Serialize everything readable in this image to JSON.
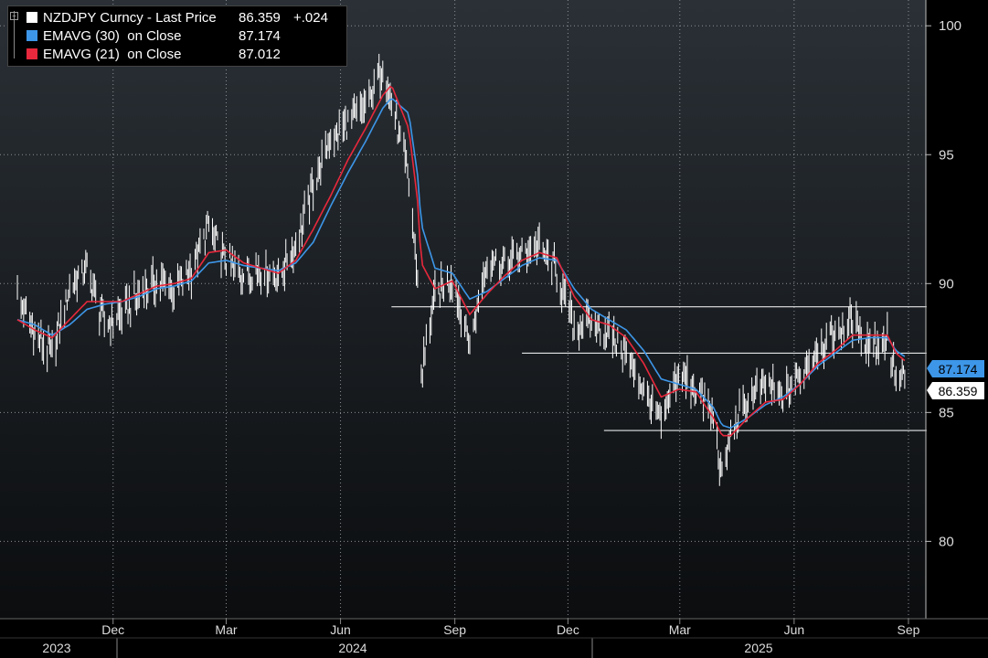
{
  "legend": {
    "items": [
      {
        "name": "NZDJPY Curncy - Last Price",
        "value": "86.359",
        "change": "+.024",
        "color": "#ffffff"
      },
      {
        "name": "EMAVG (30)  on Close",
        "value": "87.174",
        "change": "",
        "color": "#3d96e8"
      },
      {
        "name": "EMAVG (21)  on Close",
        "value": "87.012",
        "change": "",
        "color": "#e8283c"
      }
    ]
  },
  "price_tags": {
    "ema30": "87.174",
    "last": "86.359"
  },
  "chart_data": {
    "type": "line",
    "title": "",
    "xlabel": "",
    "ylabel": "",
    "ylim": [
      77,
      101
    ],
    "yticks": [
      "80",
      "85",
      "90",
      "95",
      "100"
    ],
    "month_labels": [
      "Dec",
      "Mar",
      "Jun",
      "Sep",
      "Dec",
      "Mar",
      "Jun",
      "Sep"
    ],
    "year_labels": [
      "2023",
      "2024",
      "2025"
    ],
    "grid": true,
    "legend_position": "top-left",
    "x": [
      "2023-09-15",
      "2023-09-29",
      "2023-10-13",
      "2023-10-27",
      "2023-11-10",
      "2023-11-24",
      "2023-12-08",
      "2023-12-22",
      "2024-01-05",
      "2024-01-19",
      "2024-02-02",
      "2024-02-16",
      "2024-03-01",
      "2024-03-15",
      "2024-03-29",
      "2024-04-12",
      "2024-04-26",
      "2024-05-10",
      "2024-05-24",
      "2024-06-07",
      "2024-06-21",
      "2024-07-05",
      "2024-07-12",
      "2024-07-26",
      "2024-08-02",
      "2024-08-05",
      "2024-08-16",
      "2024-08-30",
      "2024-09-13",
      "2024-09-27",
      "2024-10-11",
      "2024-10-25",
      "2024-11-08",
      "2024-11-22",
      "2024-12-06",
      "2024-12-20",
      "2025-01-03",
      "2025-01-17",
      "2025-01-31",
      "2025-02-14",
      "2025-02-28",
      "2025-03-14",
      "2025-03-28",
      "2025-04-04",
      "2025-04-11",
      "2025-04-25",
      "2025-05-09",
      "2025-05-23",
      "2025-06-06",
      "2025-06-20",
      "2025-07-04",
      "2025-07-18",
      "2025-08-01",
      "2025-08-15",
      "2025-08-22",
      "2025-08-29"
    ],
    "series": [
      {
        "name": "NZDJPY Curncy - Last Price",
        "color": "#ffffff",
        "style": "bars",
        "values": [
          89.5,
          88.0,
          87.2,
          89.8,
          90.6,
          88.4,
          88.8,
          89.6,
          90.1,
          89.8,
          90.5,
          92.2,
          90.8,
          90.3,
          90.6,
          90.2,
          91.5,
          93.8,
          95.6,
          96.2,
          96.8,
          98.4,
          97.0,
          94.0,
          90.2,
          86.5,
          89.5,
          90.3,
          87.5,
          91.0,
          90.8,
          91.2,
          91.5,
          90.4,
          88.3,
          88.5,
          88.0,
          87.3,
          85.8,
          84.5,
          86.5,
          86.0,
          84.8,
          82.5,
          84.2,
          85.5,
          86.2,
          85.6,
          86.5,
          87.5,
          88.0,
          88.5,
          87.6,
          87.9,
          86.3,
          86.36
        ]
      },
      {
        "name": "EMAVG (30)  on Close",
        "color": "#3d96e8",
        "style": "line",
        "values": [
          88.6,
          88.4,
          88.0,
          88.4,
          89.0,
          89.2,
          89.3,
          89.5,
          89.8,
          89.9,
          90.1,
          90.8,
          90.9,
          90.7,
          90.6,
          90.5,
          90.8,
          91.6,
          93.0,
          94.3,
          95.5,
          96.8,
          97.2,
          96.6,
          94.2,
          92.3,
          90.6,
          90.4,
          89.4,
          89.7,
          90.2,
          90.7,
          91.0,
          90.9,
          89.8,
          89.0,
          88.6,
          88.2,
          87.4,
          86.3,
          86.1,
          85.9,
          85.2,
          84.5,
          84.4,
          84.8,
          85.3,
          85.6,
          86.1,
          86.8,
          87.3,
          87.8,
          87.9,
          87.9,
          87.4,
          87.17
        ]
      },
      {
        "name": "EMAVG (21)  on Close",
        "color": "#e8283c",
        "style": "line",
        "values": [
          88.6,
          88.2,
          87.9,
          88.6,
          89.3,
          89.3,
          89.3,
          89.6,
          89.9,
          90.0,
          90.2,
          91.2,
          91.3,
          90.8,
          90.6,
          90.4,
          90.9,
          92.1,
          93.4,
          94.8,
          96.0,
          97.3,
          97.7,
          96.0,
          93.2,
          90.8,
          89.8,
          90.1,
          88.8,
          89.6,
          90.3,
          90.9,
          91.2,
          91.0,
          89.5,
          88.6,
          88.4,
          87.9,
          86.9,
          85.6,
          85.9,
          85.8,
          84.8,
          84.1,
          84.1,
          84.8,
          85.4,
          85.5,
          86.1,
          86.9,
          87.4,
          88.0,
          88.0,
          88.0,
          87.3,
          87.01
        ]
      }
    ],
    "reference_lines": [
      {
        "y": 89.1,
        "from": "2024-07-12",
        "to": "2025-08-29"
      },
      {
        "y": 87.3,
        "from": "2024-10-25",
        "to": "2025-08-29"
      },
      {
        "y": 84.3,
        "from": "2024-12-30",
        "to": "2025-08-29"
      }
    ]
  }
}
